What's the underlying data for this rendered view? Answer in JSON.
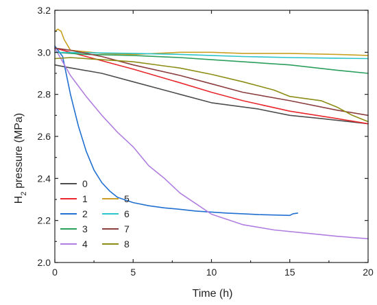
{
  "chart_data": {
    "type": "line",
    "title": "",
    "xlabel": "Time (h)",
    "ylabel_prefix": "H",
    "ylabel_sub": "2",
    "ylabel_suffix": " pressure (MPa)",
    "xlim": [
      0,
      20
    ],
    "ylim": [
      2.0,
      3.2
    ],
    "x_ticks": [
      0,
      5,
      10,
      15,
      20
    ],
    "x_tick_labels": [
      "0",
      "5",
      "10",
      "15",
      "20"
    ],
    "y_ticks": [
      2.0,
      2.2,
      2.4,
      2.6,
      2.8,
      3.0,
      3.2
    ],
    "y_tick_labels": [
      "2.0",
      "2.2",
      "2.4",
      "2.6",
      "2.8",
      "3.0",
      "3.2"
    ],
    "grid": false,
    "legend_position": "bottom-left",
    "series": [
      {
        "name": "0",
        "color": "#4d4d4d",
        "x": [
          0,
          0.7,
          3,
          5,
          8,
          10,
          13,
          15,
          17,
          20
        ],
        "y": [
          2.94,
          2.93,
          2.9,
          2.86,
          2.8,
          2.76,
          2.73,
          2.7,
          2.685,
          2.66
        ]
      },
      {
        "name": "1",
        "color": "#e8262c",
        "x": [
          0,
          1,
          3,
          5,
          8,
          10,
          12,
          15,
          18,
          20
        ],
        "y": [
          3.02,
          3.0,
          2.96,
          2.92,
          2.855,
          2.81,
          2.77,
          2.72,
          2.685,
          2.66
        ]
      },
      {
        "name": "2",
        "color": "#1f6fd1",
        "x": [
          0,
          0.5,
          1,
          1.5,
          2,
          2.5,
          3,
          3.5,
          4,
          5,
          6,
          7,
          8,
          9,
          10,
          11,
          12,
          13,
          14,
          15,
          15.2,
          15.5
        ],
        "y": [
          3.03,
          2.98,
          2.8,
          2.65,
          2.53,
          2.44,
          2.38,
          2.34,
          2.31,
          2.285,
          2.27,
          2.26,
          2.253,
          2.245,
          2.24,
          2.235,
          2.232,
          2.228,
          2.226,
          2.224,
          2.232,
          2.235
        ]
      },
      {
        "name": "3",
        "color": "#2a9f5c",
        "x": [
          0,
          2,
          5,
          8,
          10,
          12,
          15,
          18,
          20
        ],
        "y": [
          3.0,
          2.99,
          2.985,
          2.975,
          2.965,
          2.955,
          2.94,
          2.915,
          2.9
        ]
      },
      {
        "name": "4",
        "color": "#b07ee0",
        "x": [
          0,
          1,
          2,
          3,
          4,
          5,
          6,
          7,
          8,
          9,
          10,
          12,
          14,
          16,
          18,
          20
        ],
        "y": [
          3.02,
          2.89,
          2.79,
          2.7,
          2.62,
          2.55,
          2.46,
          2.4,
          2.33,
          2.28,
          2.23,
          2.18,
          2.155,
          2.14,
          2.125,
          2.113
        ]
      },
      {
        "name": "5",
        "color": "#c9a021",
        "x": [
          0,
          0.2,
          0.4,
          0.6,
          1,
          3,
          5,
          8,
          10,
          12,
          15,
          18,
          20
        ],
        "y": [
          3.1,
          3.11,
          3.1,
          3.06,
          3.01,
          2.995,
          2.99,
          3.0,
          3.0,
          2.995,
          2.995,
          2.99,
          2.985
        ]
      },
      {
        "name": "6",
        "color": "#2bc4c9",
        "x": [
          0,
          2,
          5,
          8,
          10,
          12,
          15,
          18,
          20
        ],
        "y": [
          3.0,
          2.998,
          2.995,
          2.99,
          2.985,
          2.98,
          2.975,
          2.972,
          2.97
        ]
      },
      {
        "name": "7",
        "color": "#8b3d3d",
        "x": [
          0,
          1,
          3,
          5,
          8,
          10,
          12,
          15,
          18,
          20
        ],
        "y": [
          3.02,
          3.01,
          2.98,
          2.94,
          2.89,
          2.85,
          2.81,
          2.77,
          2.725,
          2.7
        ]
      },
      {
        "name": "8",
        "color": "#8c8c14",
        "x": [
          0,
          1,
          3,
          5,
          8,
          10,
          12,
          14,
          15,
          16,
          17,
          18,
          19,
          20
        ],
        "y": [
          2.97,
          2.975,
          2.965,
          2.955,
          2.925,
          2.895,
          2.86,
          2.82,
          2.79,
          2.78,
          2.77,
          2.74,
          2.7,
          2.67
        ]
      }
    ]
  }
}
